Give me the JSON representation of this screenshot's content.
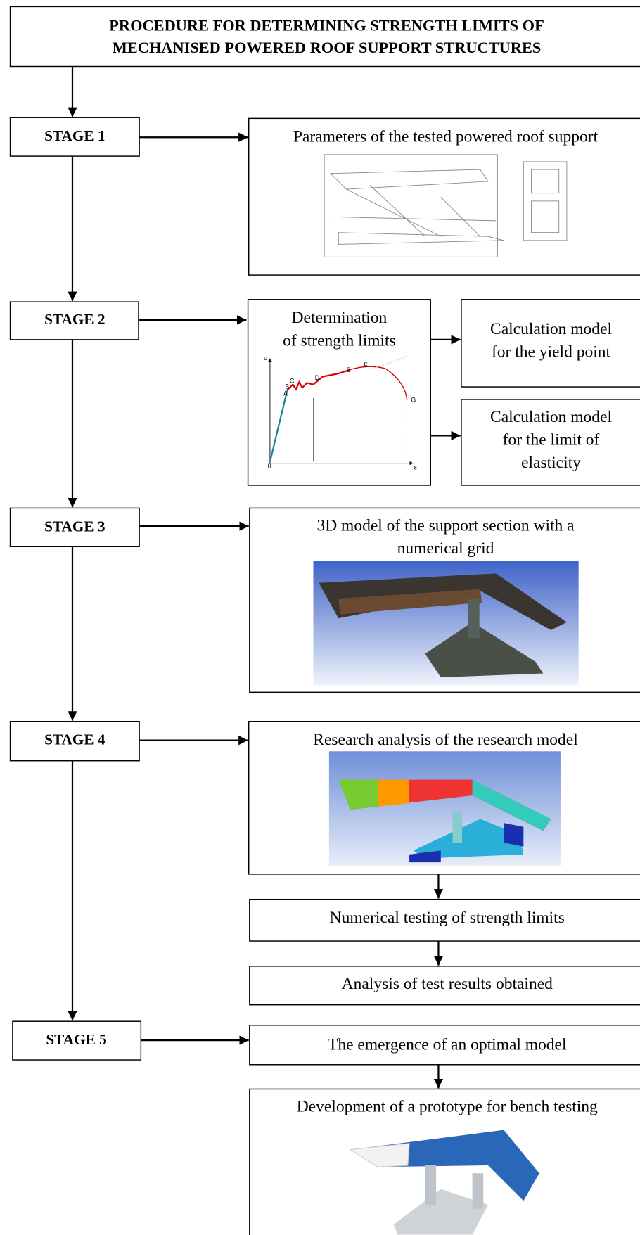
{
  "title": [
    "PROCEDURE FOR DETERMINING STRENGTH LIMITS OF",
    "MECHANISED POWERED ROOF SUPPORT STRUCTURES"
  ],
  "stages": [
    "STAGE 1",
    "STAGE 2",
    "STAGE 3",
    "STAGE 4",
    "STAGE 5"
  ],
  "boxes": {
    "parameters": "Parameters of the tested powered roof support",
    "determination": [
      "Determination",
      "of strength limits"
    ],
    "yield_point": [
      "Calculation model",
      "for the yield point"
    ],
    "elasticity": [
      "Calculation model",
      "for the limit of",
      "elasticity"
    ],
    "model_3d": [
      "3D model of the support section with a",
      "numerical grid"
    ],
    "research": "Research analysis of the research model",
    "numerical": "Numerical testing of strength limits",
    "analysis": "Analysis of test results obtained",
    "optimal": "The emergence of an optimal model",
    "prototype": "Development of a prototype for bench testing"
  },
  "graph": {
    "y_axis": "σ",
    "x_axis": "ε",
    "origin": "0",
    "points": [
      "A",
      "B",
      "C",
      "D",
      "E",
      "F",
      "G"
    ]
  }
}
